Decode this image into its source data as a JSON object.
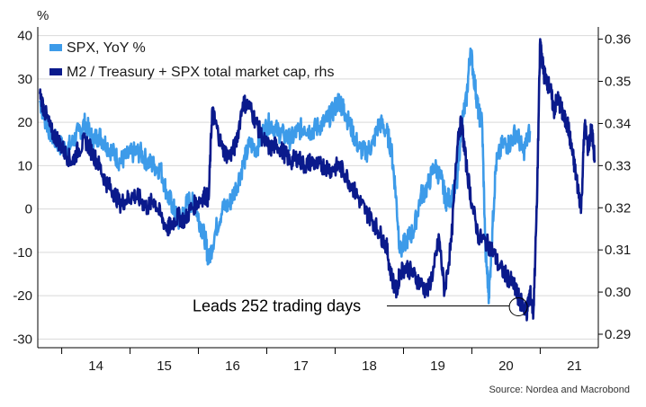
{
  "chart_data": {
    "type": "line",
    "left_axis_unit": "%",
    "left_axis": {
      "ylim": [
        -32,
        42
      ],
      "ticks": [
        40,
        30,
        20,
        10,
        0,
        -10,
        -20,
        -30
      ]
    },
    "right_axis": {
      "ylim": [
        0.2868,
        0.3629
      ],
      "ticks": [
        "0.36",
        "0.35",
        "0.34",
        "0.33",
        "0.32",
        "0.31",
        "0.30",
        "0.29"
      ]
    },
    "x_axis": {
      "range": [
        2013.65,
        2021.85
      ],
      "ticks": [
        2014,
        2015,
        2016,
        2017,
        2018,
        2019,
        2020,
        2021
      ],
      "tick_labels": [
        "14",
        "15",
        "16",
        "17",
        "18",
        "19",
        "20",
        "21"
      ]
    },
    "grid": true,
    "legend_position": "top-left",
    "series": [
      {
        "name": "SPX, YoY %",
        "axis": "left",
        "color": "#3d9be9",
        "x": [
          2013.68,
          2013.75,
          2013.85,
          2013.95,
          2014.05,
          2014.15,
          2014.25,
          2014.35,
          2014.45,
          2014.55,
          2014.65,
          2014.75,
          2014.85,
          2014.95,
          2015.05,
          2015.15,
          2015.25,
          2015.35,
          2015.45,
          2015.55,
          2015.62,
          2015.7,
          2015.78,
          2015.85,
          2015.95,
          2016.02,
          2016.1,
          2016.15,
          2016.25,
          2016.35,
          2016.45,
          2016.55,
          2016.65,
          2016.75,
          2016.85,
          2016.95,
          2017.05,
          2017.15,
          2017.25,
          2017.35,
          2017.45,
          2017.55,
          2017.65,
          2017.75,
          2017.85,
          2017.95,
          2018.05,
          2018.1,
          2018.15,
          2018.25,
          2018.35,
          2018.45,
          2018.55,
          2018.65,
          2018.75,
          2018.82,
          2018.88,
          2018.95,
          2019.05,
          2019.15,
          2019.25,
          2019.35,
          2019.45,
          2019.55,
          2019.62,
          2019.7,
          2019.78,
          2019.85,
          2019.92,
          2019.98,
          2020.05,
          2020.1,
          2020.15,
          2020.2,
          2020.25,
          2020.3,
          2020.35,
          2020.45,
          2020.55,
          2020.65,
          2020.75,
          2020.85
        ],
        "values": [
          25,
          21,
          17,
          15,
          14,
          15,
          18,
          20,
          16,
          17,
          15,
          13,
          11,
          12,
          13,
          13,
          11,
          10,
          9,
          3,
          1,
          -3,
          -1,
          2,
          1,
          -3,
          -7,
          -12,
          -5,
          0,
          1,
          5,
          10,
          15,
          14,
          18,
          20,
          18,
          17,
          16,
          18,
          19,
          18,
          19,
          20,
          22,
          25,
          24,
          22,
          18,
          14,
          13,
          15,
          20,
          18,
          14,
          5,
          -10,
          -7,
          -5,
          3,
          5,
          10,
          7,
          2,
          3,
          5,
          20,
          25,
          37,
          28,
          22,
          20,
          -10,
          -20,
          -5,
          10,
          15,
          15,
          18,
          13,
          18
        ]
      },
      {
        "name": "M2 / Treasury + SPX total market cap, rhs",
        "axis": "right",
        "color": "#0a1a8c",
        "x": [
          2013.68,
          2013.75,
          2013.85,
          2013.95,
          2014.05,
          2014.15,
          2014.25,
          2014.35,
          2014.45,
          2014.55,
          2014.65,
          2014.75,
          2014.85,
          2014.95,
          2015.05,
          2015.15,
          2015.25,
          2015.35,
          2015.45,
          2015.55,
          2015.6,
          2015.7,
          2015.8,
          2015.9,
          2016.02,
          2016.1,
          2016.15,
          2016.2,
          2016.25,
          2016.35,
          2016.45,
          2016.55,
          2016.65,
          2016.75,
          2016.85,
          2016.95,
          2017.05,
          2017.15,
          2017.25,
          2017.35,
          2017.45,
          2017.55,
          2017.65,
          2017.75,
          2017.85,
          2017.95,
          2018.05,
          2018.15,
          2018.25,
          2018.35,
          2018.45,
          2018.55,
          2018.65,
          2018.75,
          2018.82,
          2018.9,
          2018.95,
          2019.05,
          2019.15,
          2019.25,
          2019.35,
          2019.45,
          2019.52,
          2019.6,
          2019.7,
          2019.8,
          2019.85,
          2019.92,
          2020.0,
          2020.1,
          2020.2,
          2020.3,
          2020.4,
          2020.5,
          2020.6,
          2020.65,
          2020.7,
          2020.75,
          2020.8,
          2020.85,
          2020.9,
          2020.95,
          2021.0,
          2021.05,
          2021.1,
          2021.15,
          2021.2,
          2021.25,
          2021.3,
          2021.35,
          2021.4,
          2021.45,
          2021.5,
          2021.55,
          2021.6,
          2021.65,
          2021.7,
          2021.75,
          2021.8
        ],
        "values": [
          0.347,
          0.343,
          0.338,
          0.336,
          0.333,
          0.331,
          0.334,
          0.336,
          0.333,
          0.33,
          0.326,
          0.324,
          0.321,
          0.322,
          0.323,
          0.322,
          0.32,
          0.322,
          0.318,
          0.315,
          0.316,
          0.318,
          0.317,
          0.32,
          0.322,
          0.323,
          0.322,
          0.343,
          0.34,
          0.334,
          0.332,
          0.335,
          0.345,
          0.344,
          0.34,
          0.336,
          0.334,
          0.335,
          0.333,
          0.331,
          0.332,
          0.33,
          0.331,
          0.33,
          0.33,
          0.329,
          0.33,
          0.328,
          0.325,
          0.322,
          0.319,
          0.317,
          0.314,
          0.311,
          0.304,
          0.3,
          0.305,
          0.306,
          0.304,
          0.302,
          0.3,
          0.306,
          0.313,
          0.3,
          0.312,
          0.338,
          0.34,
          0.33,
          0.321,
          0.313,
          0.312,
          0.31,
          0.306,
          0.304,
          0.302,
          0.3,
          0.298,
          0.297,
          0.295,
          0.3,
          0.295,
          0.32,
          0.36,
          0.352,
          0.35,
          0.348,
          0.343,
          0.346,
          0.344,
          0.341,
          0.34,
          0.335,
          0.33,
          0.325,
          0.32,
          0.34,
          0.334,
          0.339,
          0.331
        ]
      }
    ],
    "annotation": {
      "text": "Leads 252 trading days",
      "target_series": 1,
      "target_x": 2020.68,
      "target_y": 0.2965
    },
    "source": "Source: Nordea and Macrobond"
  }
}
